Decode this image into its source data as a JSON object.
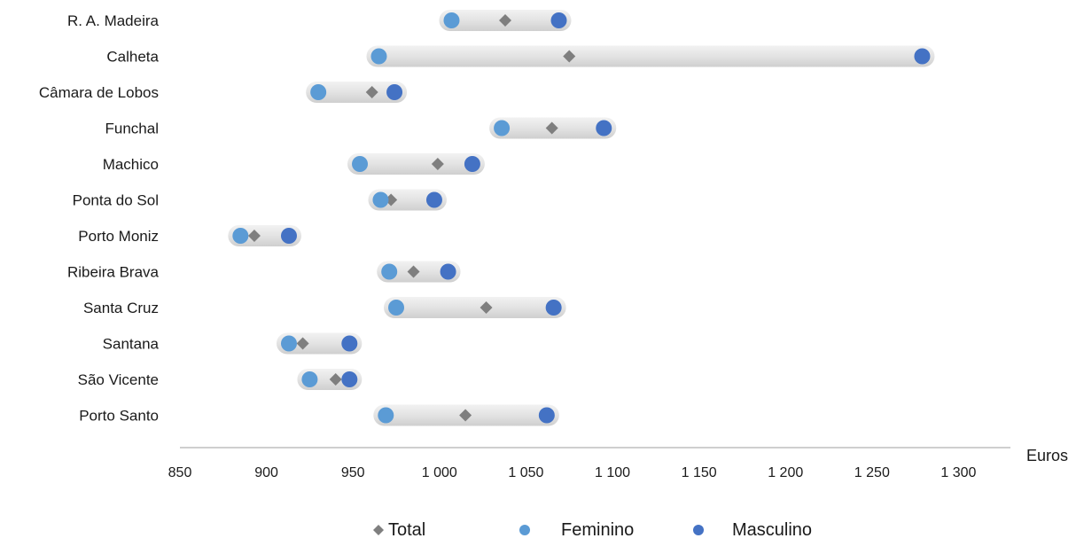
{
  "chart_data": {
    "type": "dot-range",
    "xlabel": "Euros",
    "xlim": [
      850,
      1330
    ],
    "x_ticks": [
      850,
      900,
      950,
      1000,
      1050,
      1100,
      1150,
      1200,
      1250,
      1300
    ],
    "x_tick_labels": [
      "850",
      "900",
      "950",
      "1 000",
      "1 050",
      "1 100",
      "1 150",
      "1 200",
      "1 250",
      "1 300"
    ],
    "categories": [
      "R. A. Madeira",
      "Calheta",
      "Câmara de Lobos",
      "Funchal",
      "Machico",
      "Ponta do Sol",
      "Porto Moniz",
      "Ribeira Brava",
      "Santa Cruz",
      "Santana",
      "São Vicente",
      "Porto Santo"
    ],
    "series": [
      {
        "name": "Total",
        "marker": "diamond",
        "color": "#7f7f7f",
        "values": [
          1038,
          1075,
          961,
          1065,
          999,
          972,
          893,
          985,
          1027,
          921,
          940,
          1015
        ]
      },
      {
        "name": "Feminino",
        "marker": "circle",
        "color": "#5b9bd5",
        "values": [
          1007,
          965,
          930,
          1036,
          954,
          966,
          885,
          971,
          975,
          913,
          925,
          969
        ]
      },
      {
        "name": "Masculino",
        "marker": "circle",
        "color": "#4472c4",
        "values": [
          1069,
          1279,
          974,
          1095,
          1019,
          997,
          913,
          1005,
          1066,
          948,
          948,
          1062
        ]
      }
    ],
    "legend": {
      "position": "bottom",
      "entries": [
        "Total",
        "Feminino",
        "Masculino"
      ]
    },
    "grid": false
  }
}
